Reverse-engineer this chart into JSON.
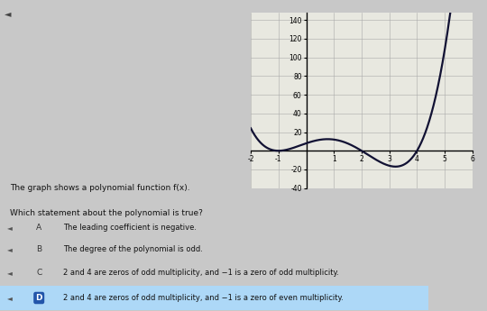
{
  "title": "The graph shows a polynomial function f(x).",
  "question": "Which statement about the polynomial is true?",
  "choices": [
    {
      "label": "A",
      "text": "The leading coefficient is negative.",
      "highlighted": false
    },
    {
      "label": "B",
      "text": "The degree of the polynomial is odd.",
      "highlighted": false
    },
    {
      "label": "C",
      "text": "2 and 4 are zeros of odd multiplicity, and −1 is a zero of odd multiplicity.",
      "highlighted": false
    },
    {
      "label": "D",
      "text": "2 and 4 are zeros of odd multiplicity, and −1 is a zero of even multiplicity.",
      "highlighted": true
    }
  ],
  "graph": {
    "xmin": -2,
    "xmax": 6,
    "ymin": -40,
    "ymax": 148,
    "xticks": [
      -2,
      -1,
      1,
      2,
      3,
      4,
      5,
      6
    ],
    "ytick_vals": [
      -40,
      -20,
      20,
      40,
      60,
      80,
      100,
      120,
      140
    ],
    "grid_color": "#aaaaaa",
    "line_color": "#111133",
    "graph_bg": "#e8e8e0"
  },
  "bg_color": "#c8c8c8",
  "speaker_color": "#555555",
  "label_D_bg": "#2255aa",
  "highlight_row_bg": "#add8f7"
}
